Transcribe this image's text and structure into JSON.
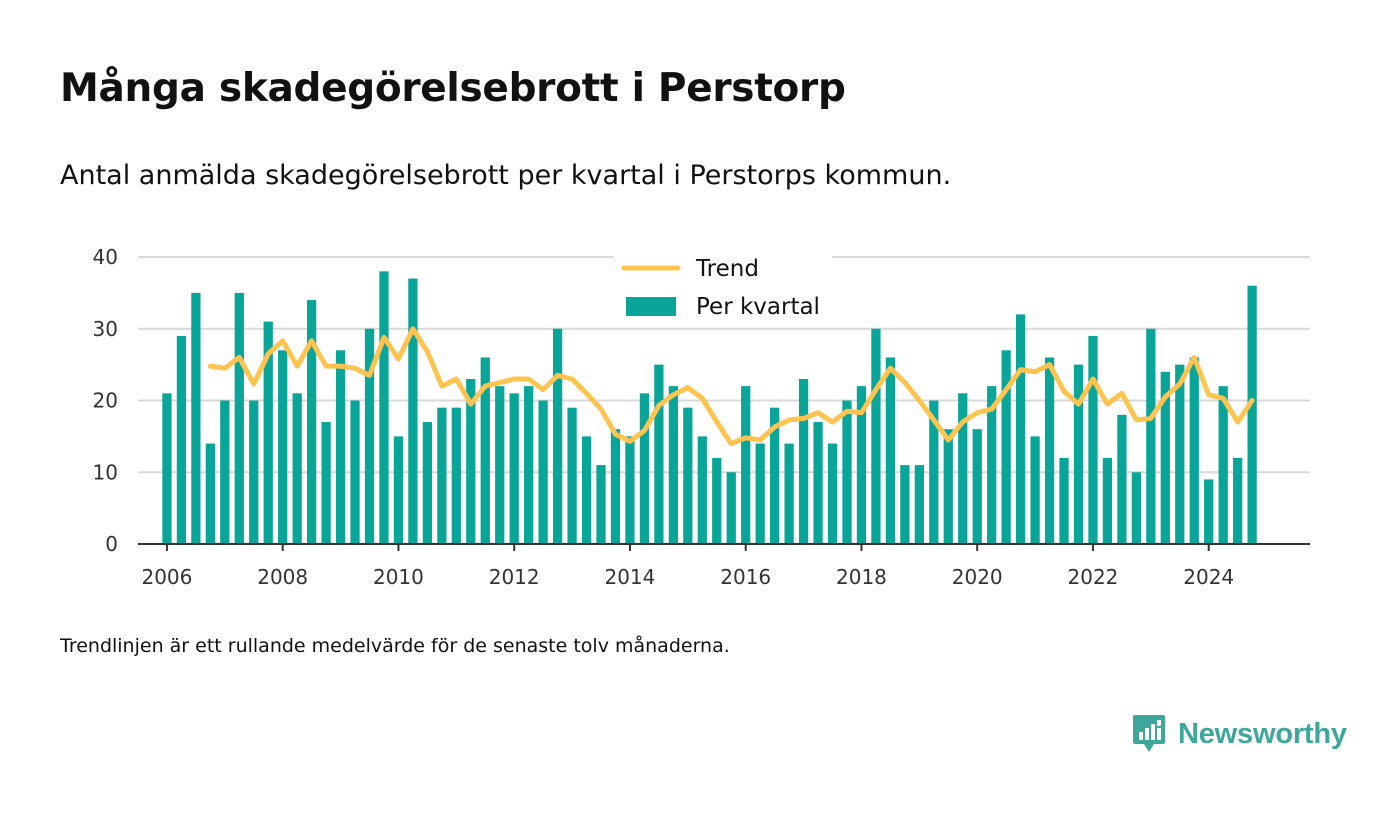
{
  "title": "Många skadegörelsebrott i Perstorp",
  "subtitle": "Antal anmälda skadegörelsebrott per kvartal i Perstorps kommun.",
  "footnote": "Trendlinjen är ett rullande medelvärde för de senaste tolv månaderna.",
  "brand": {
    "name": "Newsworthy",
    "icon": "newsworthy-logo-icon",
    "color": "#3ea79b"
  },
  "chart_data": {
    "type": "bar",
    "x_start": 2006,
    "x_step": 0.25,
    "xticks": [
      "2006",
      "2008",
      "2010",
      "2012",
      "2014",
      "2016",
      "2018",
      "2020",
      "2022",
      "2024"
    ],
    "yticks": [
      "0",
      "10",
      "20",
      "30",
      "40"
    ],
    "ylim": [
      0,
      40
    ],
    "xlim": [
      2005.5,
      2025.75
    ],
    "grid": true,
    "legend_position": "top-center",
    "series": [
      {
        "name": "Per kvartal",
        "type": "bar",
        "color": "#0aa599",
        "values": [
          21,
          29,
          35,
          14,
          20,
          35,
          20,
          31,
          27,
          21,
          34,
          17,
          27,
          20,
          30,
          38,
          15,
          37,
          17,
          19,
          19,
          23,
          26,
          22,
          21,
          22,
          20,
          30,
          19,
          15,
          11,
          16,
          15,
          21,
          25,
          22,
          19,
          15,
          12,
          10,
          22,
          14,
          19,
          14,
          23,
          17,
          14,
          20,
          22,
          30,
          26,
          11,
          11,
          20,
          16,
          21,
          16,
          22,
          27,
          32,
          15,
          26,
          12,
          25,
          29,
          12,
          18,
          10,
          30,
          24,
          25,
          26,
          9,
          22,
          12,
          36
        ]
      },
      {
        "name": "Trend",
        "type": "line",
        "color": "#fec44f",
        "start_index": 3,
        "values": [
          24.8,
          24.5,
          26.0,
          22.3,
          26.5,
          28.3,
          24.8,
          28.3,
          24.8,
          24.8,
          24.5,
          23.5,
          28.8,
          25.8,
          30.0,
          26.8,
          22.0,
          23.0,
          19.5,
          22.0,
          22.5,
          23.0,
          23.0,
          21.5,
          23.5,
          23.0,
          21.0,
          18.8,
          15.3,
          14.3,
          15.8,
          19.3,
          20.8,
          21.8,
          20.3,
          17.0,
          14.0,
          14.8,
          14.5,
          16.3,
          17.3,
          17.5,
          18.3,
          17.0,
          18.5,
          18.3,
          21.5,
          24.5,
          22.5,
          20.0,
          17.3,
          14.5,
          17.0,
          18.3,
          18.8,
          21.5,
          24.3,
          24.0,
          25.0,
          21.3,
          19.5,
          23.0,
          19.5,
          21.0,
          17.3,
          17.5,
          20.5,
          22.3,
          26.0,
          20.8,
          20.3,
          17.0,
          20.0
        ]
      }
    ]
  }
}
